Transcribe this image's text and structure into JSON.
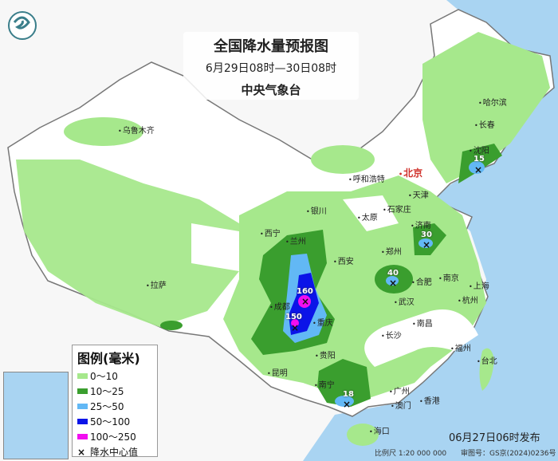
{
  "header": {
    "title": "全国降水量预报图",
    "period": "6月29日08时—30日08时",
    "issuer": "中央气象台"
  },
  "cities": [
    {
      "name": "乌鲁木齐"
    },
    {
      "name": "哈尔滨"
    },
    {
      "name": "长春"
    },
    {
      "name": "沈阳"
    },
    {
      "name": "北京"
    },
    {
      "name": "天津"
    },
    {
      "name": "呼和浩特"
    },
    {
      "name": "银川"
    },
    {
      "name": "太原"
    },
    {
      "name": "石家庄"
    },
    {
      "name": "济南"
    },
    {
      "name": "西宁"
    },
    {
      "name": "兰州"
    },
    {
      "name": "郑州"
    },
    {
      "name": "西安"
    },
    {
      "name": "拉萨"
    },
    {
      "name": "合肥"
    },
    {
      "name": "南京"
    },
    {
      "name": "上海"
    },
    {
      "name": "武汉"
    },
    {
      "name": "杭州"
    },
    {
      "name": "成都"
    },
    {
      "name": "重庆"
    },
    {
      "name": "长沙"
    },
    {
      "name": "南昌"
    },
    {
      "name": "贵阳"
    },
    {
      "name": "昆明"
    },
    {
      "name": "福州"
    },
    {
      "name": "台北"
    },
    {
      "name": "南宁"
    },
    {
      "name": "广州"
    },
    {
      "name": "香港"
    },
    {
      "name": "澳门"
    },
    {
      "name": "海口"
    }
  ],
  "rain_centers": [
    {
      "value": "160",
      "near": "成都"
    },
    {
      "value": "150",
      "near": "成都"
    },
    {
      "value": "40",
      "near": "武汉"
    },
    {
      "value": "30",
      "near": "济南"
    },
    {
      "value": "18",
      "near": "南宁"
    },
    {
      "value": "15",
      "near": "沈阳"
    }
  ],
  "legend": {
    "title": "图例(毫米)",
    "items": [
      {
        "label": "0～10",
        "color": "#a6e88c"
      },
      {
        "label": "10～25",
        "color": "#3a9e2e"
      },
      {
        "label": "25～50",
        "color": "#62b8f5"
      },
      {
        "label": "50～100",
        "color": "#0b14e8"
      },
      {
        "label": "100～250",
        "color": "#f20ef0"
      }
    ],
    "center_label": "降水中心值",
    "center_icon": "x-mark-icon"
  },
  "footer": {
    "issued": "06月27日06时发布",
    "scale": "比例尺 1:20 000 000",
    "approval": "审图号：GS京(2024)0236号"
  },
  "colors": {
    "ocean": "#a9d4f2",
    "land": "#ffffff",
    "capital": "#d0302a"
  }
}
